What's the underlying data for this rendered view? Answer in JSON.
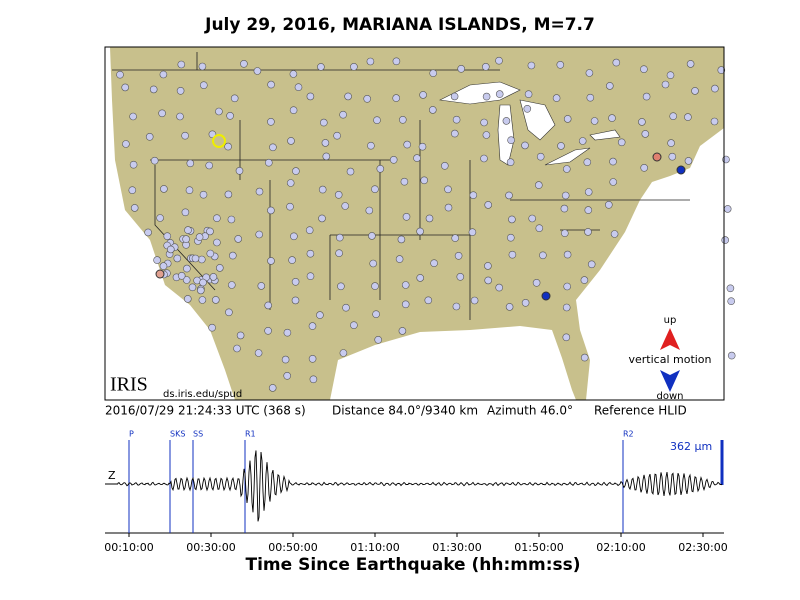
{
  "header": {
    "title": "July 29, 2016, MARIANA ISLANDS, M=7.7"
  },
  "map": {
    "logo": "IRIS",
    "credit": "ds.iris.edu/spud",
    "legend": {
      "up": "up",
      "label": "vertical motion",
      "down": "down"
    }
  },
  "info": {
    "time": "2016/07/29 21:24:33 UTC (368 s)",
    "distance": "Distance  84.0°/9340 km",
    "azimuth": "Azimuth  46.0°",
    "reference": "Reference HLID"
  },
  "seismogram": {
    "channel": "Z",
    "scale": "362 μm",
    "phases": [
      "P",
      "SKS",
      "SS",
      "R1",
      "R2"
    ],
    "ticks": [
      "00:10:00",
      "00:30:00",
      "00:50:00",
      "01:10:00",
      "01:30:00",
      "01:50:00",
      "02:10:00",
      "02:30:00"
    ],
    "xlabel": "Time Since Earthquake (hh:mm:ss)"
  }
}
